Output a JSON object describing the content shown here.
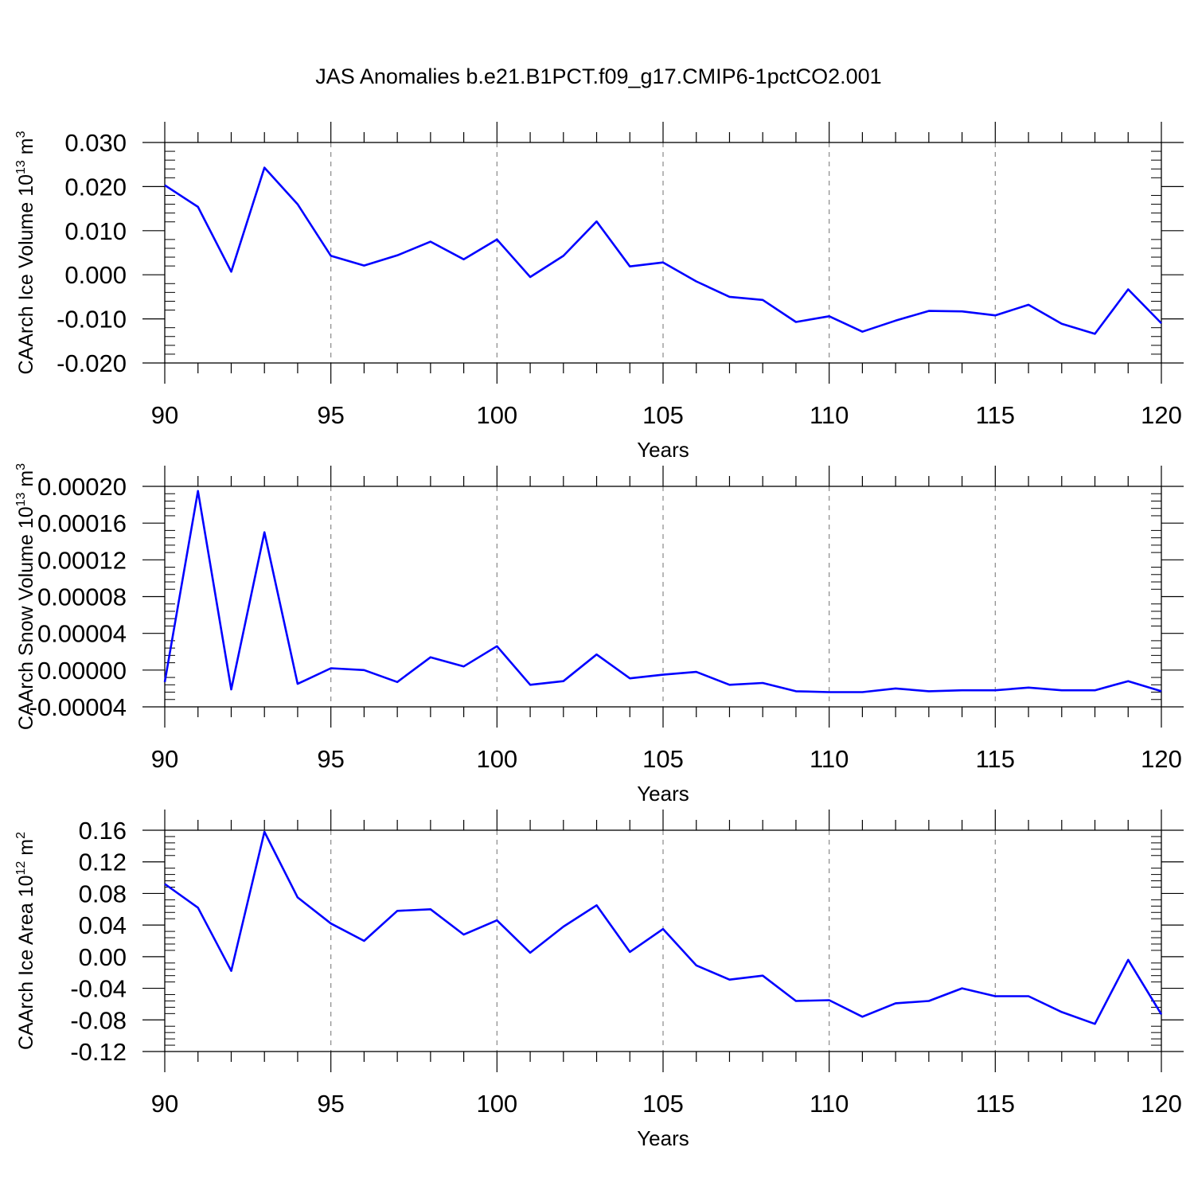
{
  "title": "JAS Anomalies b.e21.B1PCT.f09_g17.CMIP6-1pctCO2.001",
  "chart_data": [
    {
      "type": "line",
      "xlabel": "Years",
      "ylabel": {
        "text": "CAArch Ice Volume 10",
        "sup": "13",
        "unit": " m",
        "unit_sup": "3"
      },
      "xlim": [
        90,
        120
      ],
      "ylim": [
        -0.02,
        0.03
      ],
      "xticks": [
        "90",
        "95",
        "100",
        "105",
        "110",
        "115",
        "120"
      ],
      "yticks": [
        "-0.020",
        "-0.010",
        "0.000",
        "0.010",
        "0.020",
        "0.030"
      ],
      "grid": "dashed vertical at major x ticks",
      "line_color": "#0000ff",
      "x": [
        90,
        91,
        92,
        93,
        94,
        95,
        96,
        97,
        98,
        99,
        100,
        101,
        102,
        103,
        104,
        105,
        106,
        107,
        108,
        109,
        110,
        111,
        112,
        113,
        114,
        115,
        116,
        117,
        118,
        119,
        120
      ],
      "y": [
        0.0203,
        0.0154,
        0.0007,
        0.0243,
        0.016,
        0.0043,
        0.0021,
        0.0044,
        0.0075,
        0.0035,
        0.008,
        -0.0005,
        0.0043,
        0.0121,
        0.0019,
        0.0028,
        -0.0015,
        -0.005,
        -0.0057,
        -0.0107,
        -0.0094,
        -0.0129,
        -0.0104,
        -0.0082,
        -0.0083,
        -0.0092,
        -0.0068,
        -0.0111,
        -0.0134,
        -0.0033,
        -0.011
      ]
    },
    {
      "type": "line",
      "xlabel": "Years",
      "ylabel": {
        "text": "CAArch Snow Volume 10",
        "sup": "13",
        "unit": " m",
        "unit_sup": "3"
      },
      "xlim": [
        90,
        120
      ],
      "ylim": [
        -4e-05,
        0.0002
      ],
      "xticks": [
        "90",
        "95",
        "100",
        "105",
        "110",
        "115",
        "120"
      ],
      "yticks": [
        "-0.00004",
        "0.00000",
        "0.00004",
        "0.00008",
        "0.00012",
        "0.00016",
        "0.00020"
      ],
      "grid": "dashed vertical at major x ticks",
      "line_color": "#0000ff",
      "x": [
        90,
        91,
        92,
        93,
        94,
        95,
        96,
        97,
        98,
        99,
        100,
        101,
        102,
        103,
        104,
        105,
        106,
        107,
        108,
        109,
        110,
        111,
        112,
        113,
        114,
        115,
        116,
        117,
        118,
        119,
        120
      ],
      "y": [
        -1.3e-05,
        0.000195,
        -2.1e-05,
        0.00015,
        -1.5e-05,
        2e-06,
        0.0,
        -1.3e-05,
        1.4e-05,
        4e-06,
        2.6e-05,
        -1.6e-05,
        -1.2e-05,
        1.7e-05,
        -9e-06,
        -5e-06,
        -2e-06,
        -1.6e-05,
        -1.4e-05,
        -2.3e-05,
        -2.4e-05,
        -2.4e-05,
        -2e-05,
        -2.3e-05,
        -2.2e-05,
        -2.2e-05,
        -1.9e-05,
        -2.2e-05,
        -2.2e-05,
        -1.2e-05,
        -2.3e-05
      ]
    },
    {
      "type": "line",
      "xlabel": "Years",
      "ylabel": {
        "text": "CAArch Ice Area 10",
        "sup": "12",
        "unit": " m",
        "unit_sup": "2"
      },
      "xlim": [
        90,
        120
      ],
      "ylim": [
        -0.12,
        0.16
      ],
      "xticks": [
        "90",
        "95",
        "100",
        "105",
        "110",
        "115",
        "120"
      ],
      "yticks": [
        "-0.12",
        "-0.08",
        "-0.04",
        "0.00",
        "0.04",
        "0.08",
        "0.12",
        "0.16"
      ],
      "grid": "dashed vertical at major x ticks",
      "line_color": "#0000ff",
      "x": [
        90,
        91,
        92,
        93,
        94,
        95,
        96,
        97,
        98,
        99,
        100,
        101,
        102,
        103,
        104,
        105,
        106,
        107,
        108,
        109,
        110,
        111,
        112,
        113,
        114,
        115,
        116,
        117,
        118,
        119,
        120
      ],
      "y": [
        0.092,
        0.062,
        -0.018,
        0.158,
        0.075,
        0.042,
        0.02,
        0.058,
        0.06,
        0.028,
        0.046,
        0.005,
        0.038,
        0.065,
        0.006,
        0.035,
        -0.011,
        -0.029,
        -0.024,
        -0.056,
        -0.055,
        -0.076,
        -0.059,
        -0.056,
        -0.04,
        -0.05,
        -0.05,
        -0.07,
        -0.085,
        -0.004,
        -0.073
      ]
    }
  ]
}
